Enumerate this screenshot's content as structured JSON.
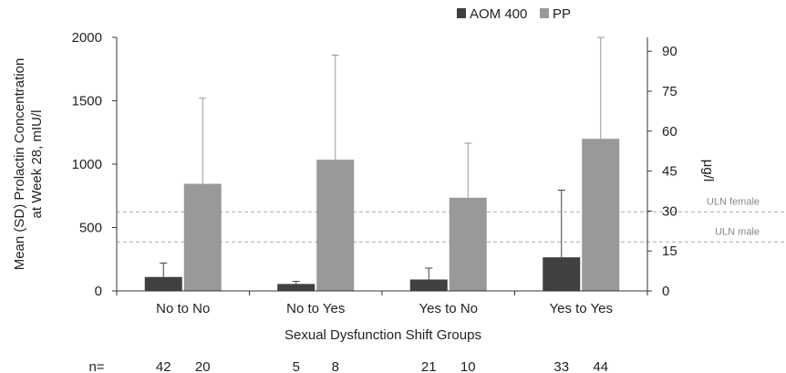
{
  "chart_data": {
    "type": "bar",
    "title": "",
    "xlabel": "Sexual Dysfunction Shift Groups",
    "ylabel_lines": [
      "Mean (SD) Prolactin Concentration",
      "at Week 28, mIU/l"
    ],
    "y2label": "μg/l",
    "categories": [
      "No to No",
      "No to Yes",
      "Yes to No",
      "Yes to Yes"
    ],
    "ylim": [
      0,
      2000
    ],
    "yticks": [
      0,
      500,
      1000,
      1500,
      2000
    ],
    "y2lim": [
      0,
      95.2
    ],
    "y2ticks": [
      0,
      15,
      30,
      45,
      60,
      75,
      90
    ],
    "series": [
      {
        "name": "AOM 400",
        "color": "#404040",
        "values": [
          110,
          55,
          90,
          265
        ],
        "sd": [
          110,
          20,
          90,
          530
        ]
      },
      {
        "name": "PP",
        "color": "#999999",
        "values": [
          845,
          1035,
          735,
          1200
        ],
        "sd": [
          675,
          825,
          430,
          800
        ]
      }
    ],
    "reference_lines": [
      {
        "label": "ULN female",
        "value_ugl": 29.7,
        "color": "#aaaaaa"
      },
      {
        "label": "ULN male",
        "value_ugl": 18.4,
        "color": "#aaaaaa"
      }
    ],
    "n_label": "n=",
    "n_values": [
      [
        "42",
        "20"
      ],
      [
        "5",
        "8"
      ],
      [
        "21",
        "10"
      ],
      [
        "33",
        "44"
      ]
    ],
    "legend_position": "top-right",
    "grid": false
  }
}
